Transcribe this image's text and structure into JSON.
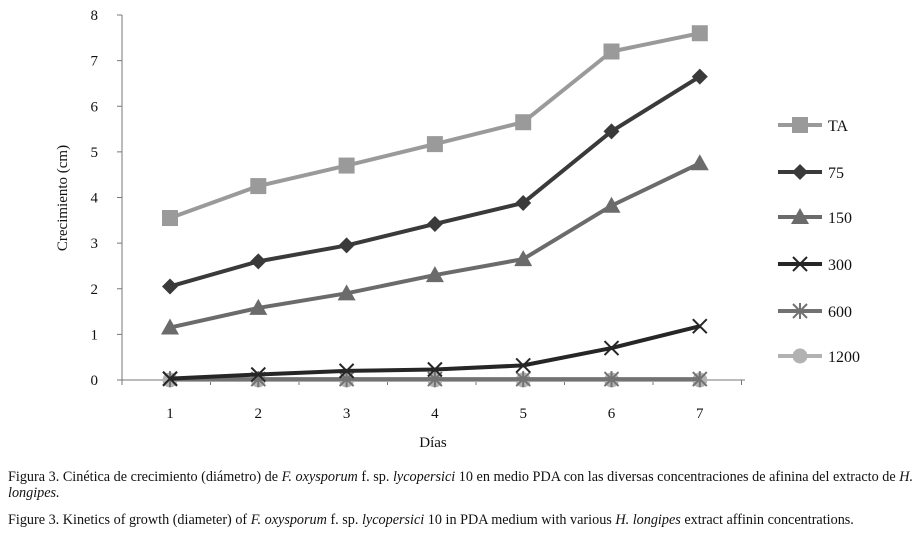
{
  "chart_data": {
    "type": "line",
    "title": "",
    "xlabel": "Días",
    "ylabel": "Crecimiento (cm)",
    "x": [
      1,
      2,
      3,
      4,
      5,
      6,
      7
    ],
    "ylim": [
      0,
      8
    ],
    "yticks": [
      0,
      1,
      2,
      3,
      4,
      5,
      6,
      7,
      8
    ],
    "grid": false,
    "legend_position": "right",
    "series": [
      {
        "name": "TA",
        "marker": "square",
        "color": "#9a9a9a",
        "values": [
          3.55,
          4.25,
          4.7,
          5.17,
          5.65,
          7.2,
          7.6
        ]
      },
      {
        "name": "75",
        "marker": "diamond",
        "color": "#3a3a3a",
        "values": [
          2.05,
          2.6,
          2.95,
          3.42,
          3.88,
          5.45,
          6.65
        ]
      },
      {
        "name": "150",
        "marker": "triangle",
        "color": "#6b6b6b",
        "values": [
          1.15,
          1.58,
          1.9,
          2.3,
          2.65,
          3.82,
          4.75
        ]
      },
      {
        "name": "300",
        "marker": "x",
        "color": "#262626",
        "values": [
          0.03,
          0.12,
          0.2,
          0.23,
          0.32,
          0.7,
          1.18
        ]
      },
      {
        "name": "600",
        "marker": "star",
        "color": "#727272",
        "values": [
          0.02,
          0.02,
          0.02,
          0.02,
          0.02,
          0.02,
          0.02
        ]
      },
      {
        "name": "1200",
        "marker": "circle",
        "color": "#b2b2b2",
        "values": [
          0,
          0,
          0,
          0,
          0,
          0,
          0
        ]
      }
    ]
  },
  "caption": {
    "es": {
      "prefix": "Figura 3. Cinética de crecimiento (diámetro) de ",
      "species": "F. oxysporum",
      "mid1": " f. sp. ",
      "forma": "lycopersici",
      "mid2": " 10 en medio PDA con las diversas concentraciones de afinina del extracto de ",
      "plant": "H. longipes.",
      "suffix": ""
    },
    "en": {
      "prefix": "Figure 3. Kinetics of growth (diameter) of ",
      "species": "F. oxysporum",
      "mid1": " f. sp. ",
      "forma": "lycopersici",
      "mid2": " 10 in PDA medium with various ",
      "plant": "H. longipes",
      "suffix": " extract affinin concentrations."
    }
  }
}
